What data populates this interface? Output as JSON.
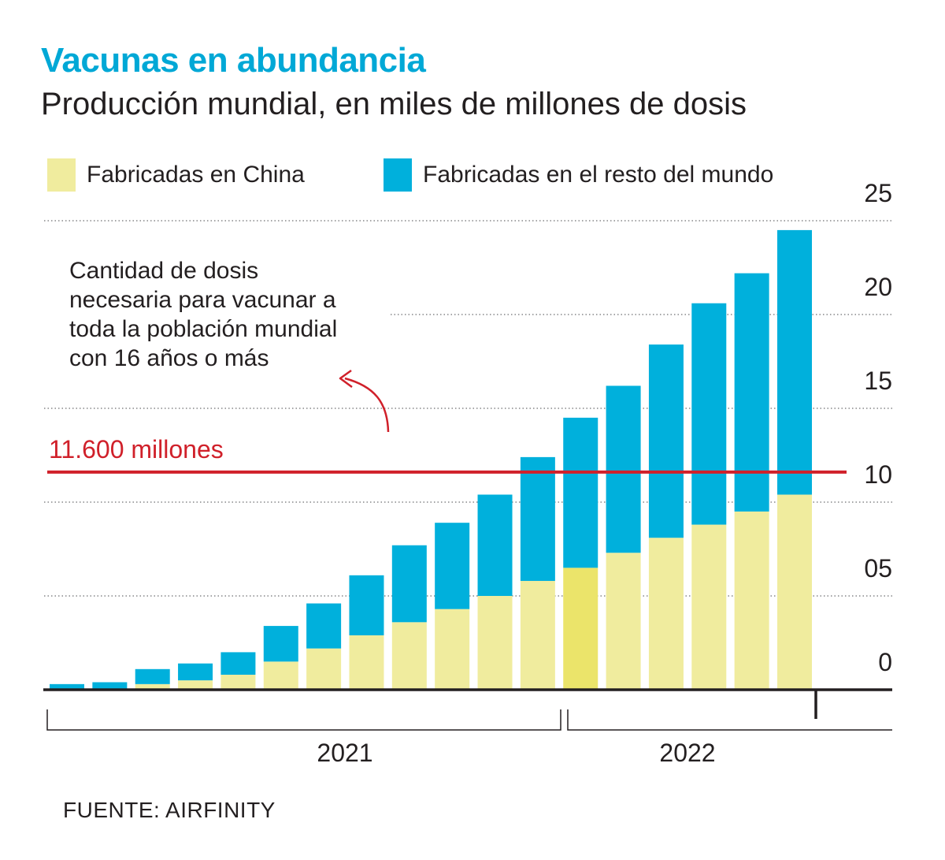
{
  "header": {
    "title": "Vacunas en abundancia",
    "subtitle": "Producción mundial, en miles de millones de dosis"
  },
  "legend": [
    {
      "label": "Fabricadas en China",
      "color": "#f0ec9e"
    },
    {
      "label": "Fabricadas en el resto del mundo",
      "color": "#00b0dc"
    }
  ],
  "annotation": {
    "lines": [
      "Cantidad de dosis",
      "necesaria para vacunar a",
      "toda la población mundial",
      "con 16 años o más"
    ],
    "threshold_label": "11.600 millones",
    "threshold_value": 11.6,
    "threshold_color": "#d0202a"
  },
  "source": "FUENTE: AIRFINITY",
  "chart_data": {
    "type": "bar",
    "stacked": true,
    "y_ticks": [
      "0",
      "05",
      "10",
      "15",
      "20",
      "25"
    ],
    "y_tick_values": [
      0,
      5,
      10,
      15,
      20,
      25
    ],
    "ylim": [
      0,
      25
    ],
    "grid": true,
    "year_labels": [
      "2021",
      "2022"
    ],
    "year_groups": [
      {
        "label": "2021",
        "first_bar": 0,
        "last_bar": 11
      },
      {
        "label": "2022",
        "first_bar": 12,
        "last_bar": 17
      }
    ],
    "highlight_bar": 12,
    "highlight_color": "#ebe46a",
    "series": [
      {
        "name": "Fabricadas en China",
        "color": "#f0ec9e",
        "values": [
          0,
          0,
          0.3,
          0.5,
          0.8,
          1.5,
          2.2,
          2.9,
          3.6,
          4.3,
          5.0,
          5.8,
          6.5,
          7.3,
          8.1,
          8.8,
          9.5,
          10.4
        ]
      },
      {
        "name": "Fabricadas en el resto del mundo",
        "color": "#00b0dc",
        "values": [
          0.3,
          0.4,
          0.8,
          0.9,
          1.2,
          1.9,
          2.4,
          3.2,
          4.1,
          4.6,
          5.4,
          6.6,
          8.0,
          8.9,
          10.3,
          11.8,
          12.7,
          14.1
        ]
      }
    ]
  }
}
